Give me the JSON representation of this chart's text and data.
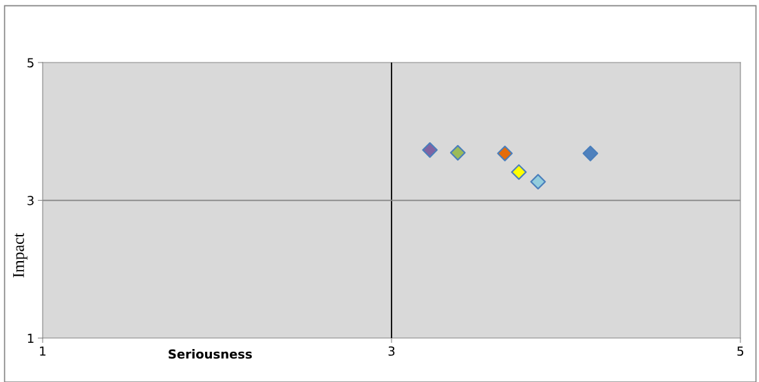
{
  "chart_data": {
    "type": "scatter",
    "xlabel": "Seriousness",
    "ylabel": "Impact",
    "x": [
      3.22,
      3.38,
      3.65,
      3.73,
      3.84,
      4.14
    ],
    "values": [
      3.73,
      3.69,
      3.68,
      3.41,
      3.27,
      3.68
    ],
    "colors": [
      "#8064a2",
      "#9bbb59",
      "#e46c0a",
      "#ffff00",
      "#93cddd",
      "#4f81bd"
    ],
    "marker": "diamond",
    "xlim": [
      1,
      5
    ],
    "xticks": [
      1,
      3,
      5
    ],
    "ylim": [
      1,
      5
    ],
    "yticks": [
      1,
      3,
      5
    ],
    "ref_lines": [
      {
        "axis": "x",
        "value": 3,
        "color": "#000000"
      },
      {
        "axis": "y",
        "value": 3,
        "color": "#868686"
      }
    ],
    "legend": false
  }
}
